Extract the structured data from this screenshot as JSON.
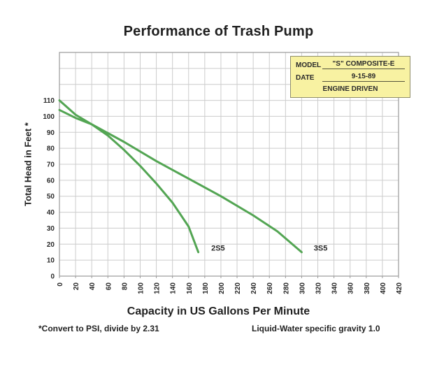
{
  "info_box": {
    "model_label": "MODEL",
    "model_value": "\"S\" COMPOSITE-E",
    "date_label": "DATE",
    "date_value": "9-15-89",
    "engine": "ENGINE DRIVEN"
  },
  "footnotes": {
    "left": "*Convert to PSI, divide by 2.31",
    "right": "Liquid-Water specific gravity 1.0"
  },
  "chart_data": {
    "type": "line",
    "title": "Performance of Trash Pump",
    "xlabel": "Capacity in US Gallons Per Minute",
    "ylabel": "Total Head in Feet *",
    "xlim": [
      0,
      420
    ],
    "ylim": [
      0,
      140
    ],
    "x_tick_step": 20,
    "y_grid_step": 10,
    "grid": true,
    "x_ticks": [
      0,
      20,
      40,
      60,
      80,
      100,
      120,
      140,
      160,
      180,
      200,
      220,
      240,
      260,
      280,
      300,
      320,
      340,
      360,
      380,
      400,
      420
    ],
    "y_tick_labels": [
      0,
      10,
      20,
      30,
      40,
      50,
      60,
      70,
      80,
      90,
      100,
      110
    ],
    "colors": {
      "line": "#53a553",
      "grid": "#cccccc",
      "axis": "#9a9a9a",
      "info_box_bg": "#f8f2a2"
    },
    "series": [
      {
        "name": "2S5",
        "points": [
          [
            0,
            110
          ],
          [
            20,
            101
          ],
          [
            40,
            95
          ],
          [
            60,
            88
          ],
          [
            80,
            79
          ],
          [
            100,
            69
          ],
          [
            120,
            58
          ],
          [
            140,
            46
          ],
          [
            160,
            31
          ],
          [
            172,
            15
          ]
        ],
        "label_pos": [
          188,
          16
        ]
      },
      {
        "name": "3S5",
        "points": [
          [
            0,
            104
          ],
          [
            20,
            99
          ],
          [
            40,
            95
          ],
          [
            80,
            84
          ],
          [
            120,
            72
          ],
          [
            160,
            61
          ],
          [
            200,
            50
          ],
          [
            240,
            38
          ],
          [
            270,
            28
          ],
          [
            300,
            15
          ]
        ],
        "label_pos": [
          315,
          16
        ]
      }
    ]
  }
}
